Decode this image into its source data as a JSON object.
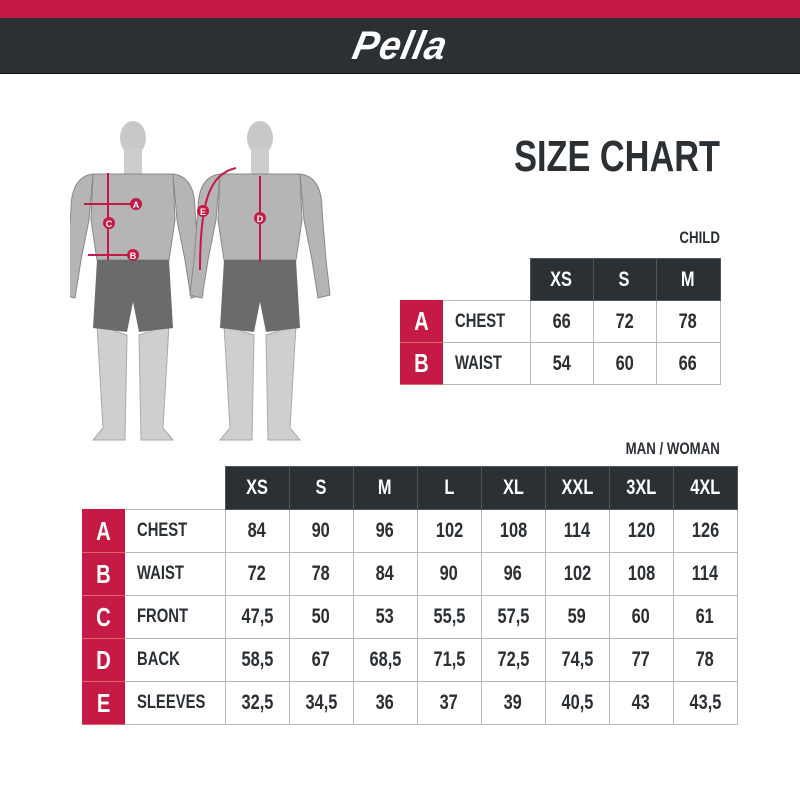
{
  "brand": {
    "logo": "Pella",
    "colors": {
      "accent": "#c41a45",
      "dark": "#2b3035"
    }
  },
  "title": "SIZE CHART",
  "figure": {
    "markers": [
      "A",
      "B",
      "C",
      "D",
      "E"
    ]
  },
  "child": {
    "caption": "CHILD",
    "sizes": [
      "XS",
      "S",
      "M"
    ],
    "rows": [
      {
        "letter": "A",
        "label": "CHEST",
        "values": [
          "66",
          "72",
          "78"
        ]
      },
      {
        "letter": "B",
        "label": "WAIST",
        "values": [
          "54",
          "60",
          "66"
        ]
      }
    ]
  },
  "adult": {
    "caption": "MAN / WOMAN",
    "sizes": [
      "XS",
      "S",
      "M",
      "L",
      "XL",
      "XXL",
      "3XL",
      "4XL"
    ],
    "rows": [
      {
        "letter": "A",
        "label": "CHEST",
        "values": [
          "84",
          "90",
          "96",
          "102",
          "108",
          "114",
          "120",
          "126"
        ]
      },
      {
        "letter": "B",
        "label": "WAIST",
        "values": [
          "72",
          "78",
          "84",
          "90",
          "96",
          "102",
          "108",
          "114"
        ]
      },
      {
        "letter": "C",
        "label": "FRONT",
        "values": [
          "47,5",
          "50",
          "53",
          "55,5",
          "57,5",
          "59",
          "60",
          "61"
        ]
      },
      {
        "letter": "D",
        "label": "BACK",
        "values": [
          "58,5",
          "67",
          "68,5",
          "71,5",
          "72,5",
          "74,5",
          "77",
          "78"
        ]
      },
      {
        "letter": "E",
        "label": "SLEEVES",
        "values": [
          "32,5",
          "34,5",
          "36",
          "37",
          "39",
          "40,5",
          "43",
          "43,5"
        ]
      }
    ]
  }
}
